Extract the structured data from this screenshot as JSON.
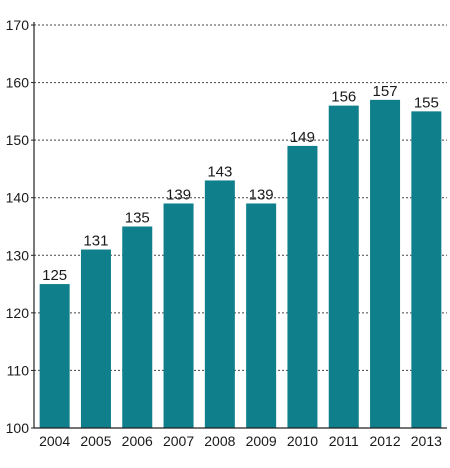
{
  "chart_data": {
    "type": "bar",
    "categories": [
      "2004",
      "2005",
      "2006",
      "2007",
      "2008",
      "2009",
      "2010",
      "2011",
      "2012",
      "2013"
    ],
    "values": [
      125,
      131,
      135,
      139,
      143,
      139,
      149,
      156,
      157,
      155
    ],
    "data_labels": [
      "125",
      "131",
      "135",
      "139",
      "143",
      "139",
      "149",
      "156",
      "157",
      "155"
    ],
    "title": "",
    "xlabel": "",
    "ylabel": "",
    "ylim": [
      100,
      170
    ],
    "yticks": [
      100,
      110,
      120,
      130,
      140,
      150,
      160,
      170
    ],
    "ytick_labels": [
      "100",
      "110",
      "120",
      "130",
      "140",
      "150",
      "160",
      "170"
    ],
    "grid": "horizontal-dotted",
    "bar_color": "#0f7f8c",
    "grid_color": "#444444",
    "axis_color": "#222222",
    "text_color": "#1a1a1a"
  }
}
